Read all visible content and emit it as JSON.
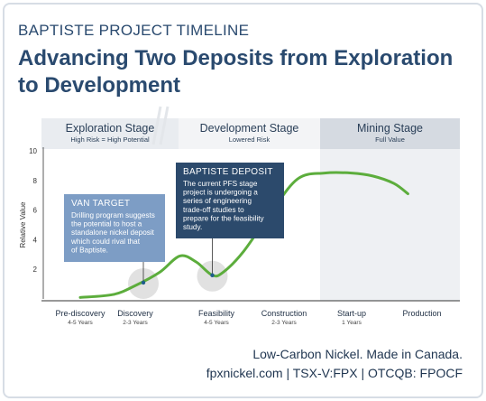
{
  "header": {
    "kicker": "BAPTISTE PROJECT TIMELINE",
    "headline_line1": "Advancing Two Deposits from Exploration",
    "headline_line2": "to Development"
  },
  "chart_data": {
    "type": "line",
    "ylabel": "Relative Value",
    "ylim": [
      0,
      10
    ],
    "yticks": [
      "2",
      "4",
      "6",
      "8",
      "10"
    ],
    "stages": [
      {
        "title": "Exploration Stage",
        "subtitle": "High Risk = High Potential",
        "color": "#e9ecf0"
      },
      {
        "title": "Development Stage",
        "subtitle": "Lowered Risk",
        "color": "#f3f4f6"
      },
      {
        "title": "Mining Stage",
        "subtitle": "Full Value",
        "color": "#d5dae1"
      }
    ],
    "categories": [
      {
        "label": "Pre-discovery",
        "sub": "4-5 Years"
      },
      {
        "label": "Discovery",
        "sub": "2-3 Years"
      },
      {
        "label": "Feasibility",
        "sub": "4-5 Years"
      },
      {
        "label": "Construction",
        "sub": "2-3 Years"
      },
      {
        "label": "Start-up",
        "sub": "1 Years"
      },
      {
        "label": "Production",
        "sub": ""
      }
    ],
    "series": [
      {
        "color": "#5cad3c",
        "x": [
          0,
          0.6,
          1.0,
          1.3,
          1.55,
          1.75,
          1.95,
          2.1,
          2.4,
          2.8,
          3.2,
          3.6,
          4.0,
          4.3,
          4.6,
          4.8
        ],
        "y": [
          0.1,
          0.3,
          0.9,
          1.8,
          2.9,
          2.5,
          1.6,
          1.8,
          3.2,
          5.8,
          8.1,
          8.5,
          8.5,
          8.3,
          7.8,
          7.1
        ]
      }
    ],
    "annotations": [
      {
        "name": "van-target",
        "title": "VAN TARGET",
        "lines": [
          "Drilling program suggests",
          "the potential to host a",
          "standalone nickel deposit",
          "which could rival that",
          "of Baptiste."
        ],
        "point": {
          "x": 1.1,
          "y": 1.1
        },
        "color": "#7d9dc5"
      },
      {
        "name": "baptiste-deposit",
        "title": "BAPTISTE DEPOSIT",
        "lines": [
          "The current PFS stage",
          "project is undergoing a",
          "series of engineering",
          "trade-off studies to",
          "prepare for the feasibility",
          "study."
        ],
        "point": {
          "x": 1.95,
          "y": 1.6
        },
        "color": "#2c4a6c"
      }
    ]
  },
  "footer": {
    "line1": "Low-Carbon Nickel. Made in Canada.",
    "line2": "fpxnickel.com | TSX-V:FPX | OTCQB: FPOCF"
  }
}
